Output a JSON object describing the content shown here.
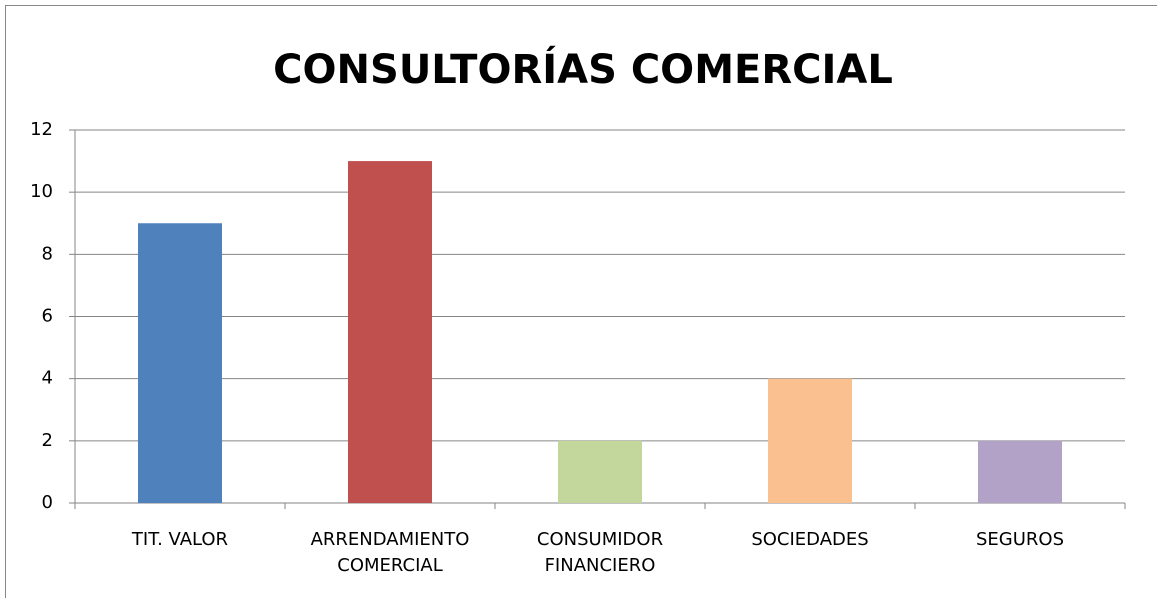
{
  "chart_data": {
    "type": "bar",
    "title": "CONSULTORÍAS COMERCIAL",
    "categories": [
      "TIT. VALOR",
      "ARRENDAMIENTO COMERCIAL",
      "CONSUMIDOR FINANCIERO",
      "SOCIEDADES",
      "SEGUROS"
    ],
    "values": [
      9,
      11,
      2,
      4,
      2
    ],
    "colors": [
      "#4f81bd",
      "#c0504d",
      "#c3d69b",
      "#fac090",
      "#b3a2c7"
    ],
    "ylim": [
      0,
      12
    ],
    "yticks": [
      0,
      2,
      4,
      6,
      8,
      10,
      12
    ],
    "grid": true
  }
}
